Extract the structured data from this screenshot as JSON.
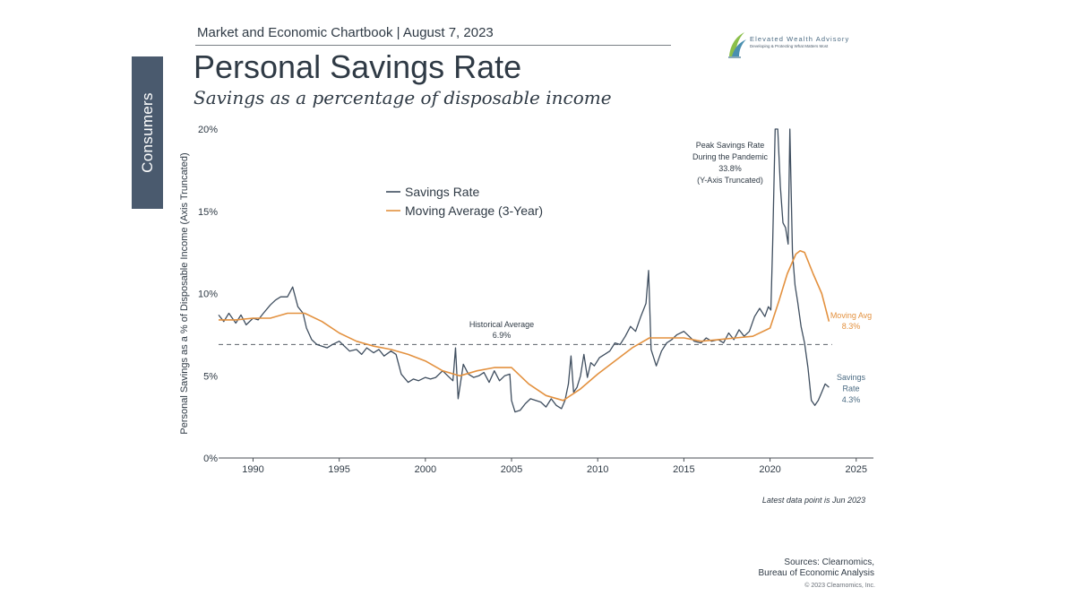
{
  "side_tab": {
    "label": "Consumers"
  },
  "header": {
    "text": "Market and Economic Chartbook | August 7, 2023"
  },
  "logo": {
    "name": "Elevated Wealth Advisory",
    "tagline": "Developing & Protecting What Matters Most"
  },
  "footer": {
    "latest": "Latest data point is Jun 2023",
    "sources_line1": "Sources: Clearnomics,",
    "sources_line2": "Bureau of Economic Analysis",
    "copyright": "© 2023 Clearnomics, Inc."
  },
  "colors": {
    "savings": "#3f4e5f",
    "moving_avg": "#e3913f",
    "side_tab": "#4a5a6e",
    "reference": "#5a6068"
  },
  "chart_data": {
    "type": "line",
    "title": "Personal Savings Rate",
    "subtitle": "Savings as a percentage of disposable income",
    "ylabel": "Personal Savings as a % of Disposable Income (Axis Truncated)",
    "xlabel": "",
    "xlim": [
      1988,
      2026
    ],
    "ylim": [
      0,
      20
    ],
    "x_ticks": [
      1990,
      1995,
      2000,
      2005,
      2010,
      2015,
      2020,
      2025
    ],
    "x_tick_labels": [
      "1990",
      "1995",
      "2000",
      "2005",
      "2010",
      "2015",
      "2020",
      "2025"
    ],
    "y_ticks": [
      0,
      5,
      10,
      15,
      20
    ],
    "y_tick_labels": [
      "0%",
      "5%",
      "10%",
      "15%",
      "20%"
    ],
    "legend": {
      "position": "top-left",
      "entries": [
        "Savings Rate",
        "Moving Average (3-Year)"
      ]
    },
    "series": [
      {
        "name": "Savings Rate",
        "x": [
          1988.0,
          1988.3,
          1988.6,
          1989.0,
          1989.3,
          1989.6,
          1990.0,
          1990.3,
          1990.6,
          1991.0,
          1991.3,
          1991.6,
          1992.0,
          1992.3,
          1992.6,
          1992.9,
          1993.1,
          1993.4,
          1993.7,
          1994.0,
          1994.3,
          1994.6,
          1995.0,
          1995.3,
          1995.6,
          1996.0,
          1996.3,
          1996.6,
          1997.0,
          1997.3,
          1997.6,
          1998.0,
          1998.3,
          1998.6,
          1999.0,
          1999.3,
          1999.6,
          2000.0,
          2000.3,
          2000.6,
          2001.0,
          2001.3,
          2001.6,
          2001.75,
          2001.9,
          2002.2,
          2002.5,
          2002.8,
          2003.1,
          2003.4,
          2003.7,
          2004.0,
          2004.3,
          2004.6,
          2004.9,
          2005.0,
          2005.2,
          2005.5,
          2005.8,
          2006.1,
          2006.4,
          2006.7,
          2007.0,
          2007.3,
          2007.6,
          2007.9,
          2008.1,
          2008.3,
          2008.45,
          2008.6,
          2008.8,
          2009.0,
          2009.2,
          2009.4,
          2009.6,
          2009.8,
          2010.1,
          2010.4,
          2010.7,
          2011.0,
          2011.3,
          2011.6,
          2011.9,
          2012.2,
          2012.5,
          2012.8,
          2012.95,
          2013.1,
          2013.4,
          2013.7,
          2014.0,
          2014.3,
          2014.6,
          2015.0,
          2015.3,
          2015.6,
          2016.0,
          2016.3,
          2016.6,
          2017.0,
          2017.3,
          2017.6,
          2017.9,
          2018.2,
          2018.5,
          2018.8,
          2019.1,
          2019.4,
          2019.7,
          2019.9,
          2020.05,
          2020.15,
          2020.3,
          2020.45,
          2020.6,
          2020.75,
          2020.9,
          2021.05,
          2021.15,
          2021.3,
          2021.45,
          2021.6,
          2021.8,
          2022.0,
          2022.2,
          2022.4,
          2022.6,
          2022.8,
          2023.0,
          2023.2,
          2023.42
        ],
        "values": [
          8.7,
          8.3,
          8.8,
          8.2,
          8.7,
          8.1,
          8.5,
          8.4,
          8.8,
          9.3,
          9.6,
          9.8,
          9.8,
          10.4,
          9.2,
          8.8,
          7.9,
          7.2,
          6.9,
          6.8,
          6.7,
          6.9,
          7.1,
          6.8,
          6.5,
          6.6,
          6.3,
          6.7,
          6.4,
          6.6,
          6.2,
          6.5,
          6.3,
          5.1,
          4.6,
          4.8,
          4.7,
          4.9,
          4.8,
          4.9,
          5.3,
          5.0,
          4.7,
          6.7,
          3.6,
          5.7,
          5.1,
          4.9,
          5.0,
          5.2,
          4.6,
          5.3,
          4.7,
          5.0,
          5.1,
          3.5,
          2.8,
          2.9,
          3.3,
          3.6,
          3.5,
          3.4,
          3.1,
          3.6,
          3.2,
          3.0,
          3.5,
          4.5,
          6.2,
          4.0,
          4.3,
          5.0,
          6.3,
          4.9,
          5.8,
          5.6,
          6.1,
          6.3,
          6.5,
          7.0,
          6.9,
          7.4,
          8.0,
          7.7,
          8.6,
          9.4,
          11.4,
          6.6,
          5.6,
          6.5,
          7.0,
          7.2,
          7.5,
          7.7,
          7.4,
          7.1,
          7.0,
          7.3,
          7.1,
          7.2,
          7.0,
          7.6,
          7.2,
          7.8,
          7.4,
          7.7,
          8.6,
          9.1,
          8.6,
          9.2,
          9.0,
          13.0,
          33.8,
          25.0,
          16.5,
          14.3,
          14.0,
          13.0,
          26.0,
          12.5,
          10.5,
          9.5,
          8.0,
          7.0,
          5.5,
          3.5,
          3.2,
          3.5,
          4.0,
          4.5,
          4.3
        ]
      },
      {
        "name": "Moving Average (3-Year)",
        "x": [
          1988.0,
          1989.0,
          1990.0,
          1991.0,
          1992.0,
          1993.0,
          1994.0,
          1995.0,
          1996.0,
          1997.0,
          1998.0,
          1999.0,
          2000.0,
          2001.0,
          2002.0,
          2003.0,
          2004.0,
          2005.0,
          2006.0,
          2007.0,
          2008.0,
          2009.0,
          2010.0,
          2011.0,
          2012.0,
          2013.0,
          2014.0,
          2015.0,
          2016.0,
          2017.0,
          2018.0,
          2019.0,
          2020.0,
          2020.5,
          2021.0,
          2021.5,
          2021.75,
          2022.0,
          2022.5,
          2023.0,
          2023.42
        ],
        "values": [
          8.4,
          8.4,
          8.5,
          8.5,
          8.8,
          8.8,
          8.3,
          7.6,
          7.1,
          6.8,
          6.6,
          6.3,
          5.9,
          5.3,
          5.0,
          5.3,
          5.5,
          5.5,
          4.5,
          3.8,
          3.5,
          4.2,
          5.1,
          5.9,
          6.7,
          7.3,
          7.3,
          7.3,
          7.1,
          7.2,
          7.3,
          7.4,
          7.9,
          9.5,
          11.2,
          12.4,
          12.6,
          12.5,
          11.2,
          10.0,
          8.3
        ]
      }
    ],
    "reference_line": {
      "value": 6.9,
      "style": "dashed"
    },
    "annotations": [
      {
        "id": "peak",
        "lines": [
          "Peak Savings Rate",
          "During the Pandemic",
          "33.8%",
          "(Y-Axis Truncated)"
        ]
      },
      {
        "id": "historical",
        "lines": [
          "Historical Average",
          "6.9%"
        ]
      },
      {
        "id": "moving-avg",
        "lines": [
          "Moving Avg",
          "8.3%"
        ]
      },
      {
        "id": "savings-rate",
        "lines": [
          "Savings",
          "Rate",
          "4.3%"
        ]
      }
    ]
  }
}
